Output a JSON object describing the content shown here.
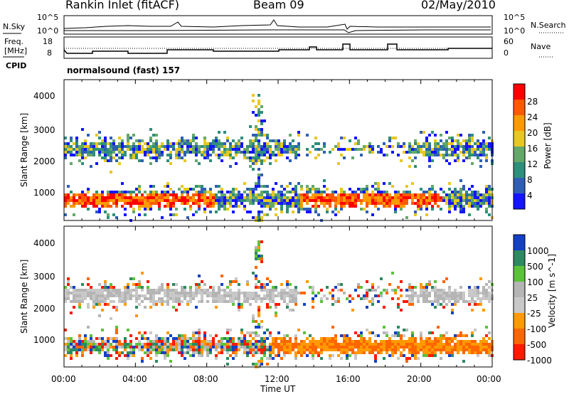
{
  "header": {
    "station": "Rankin Inlet (fitACF)",
    "beam": "Beam 09",
    "date": "02/May/2010"
  },
  "noise_panel": {
    "left_label": "N.Sky",
    "right_label": "N.Search",
    "left_ticks": [
      "10^5",
      "10^0"
    ],
    "right_ticks": [
      "10^5",
      "10^0"
    ]
  },
  "freq_panel": {
    "left_label_1": "Freq.",
    "left_label_2": "[MHz]",
    "right_label": "Nave",
    "left_ticks": [
      "18",
      "8"
    ],
    "right_ticks": [
      "60",
      "0"
    ]
  },
  "cpid": {
    "label": "CPID",
    "mode": "normalsound (fast) 157"
  },
  "chart_data": [
    {
      "type": "heatmap",
      "name_of_panel": "power",
      "ylabel": "Slant Range [km]",
      "y_ticks": [
        "1000",
        "2000",
        "3000",
        "4000"
      ],
      "ylim": [
        200,
        4500
      ],
      "x_ticks": [
        "00:00",
        "04:00",
        "08:00",
        "12:00",
        "16:00",
        "20:00",
        "00:00"
      ],
      "colorbar_label": "Power [dB]",
      "colorbar_ticks": [
        "4",
        "8",
        "12",
        "16",
        "20",
        "24",
        "28"
      ],
      "colors": [
        "#1414ff",
        "#2f5fb5",
        "#2e8f7a",
        "#64a86a",
        "#e8c820",
        "#ff9a00",
        "#ff5a00",
        "#ff0000"
      ]
    },
    {
      "type": "heatmap",
      "name_of_panel": "velocity",
      "ylabel": "Slant Range [km]",
      "y_ticks": [
        "1000",
        "2000",
        "3000",
        "4000"
      ],
      "ylim": [
        200,
        4500
      ],
      "x_ticks": [
        "00:00",
        "04:00",
        "08:00",
        "12:00",
        "16:00",
        "20:00",
        "00:00"
      ],
      "xlabel": "Time UT",
      "colorbar_label": "Velocity [m s^-1]",
      "colorbar_ticks": [
        "1000",
        "500",
        "100",
        "25",
        "-25",
        "-100",
        "-500",
        "-1000"
      ],
      "colors": [
        "#1440c8",
        "#2e8a60",
        "#5cc23a",
        "#b5b5b5",
        "#c8c8c8",
        "#ff9a00",
        "#ff6600",
        "#ff1a00"
      ]
    }
  ]
}
